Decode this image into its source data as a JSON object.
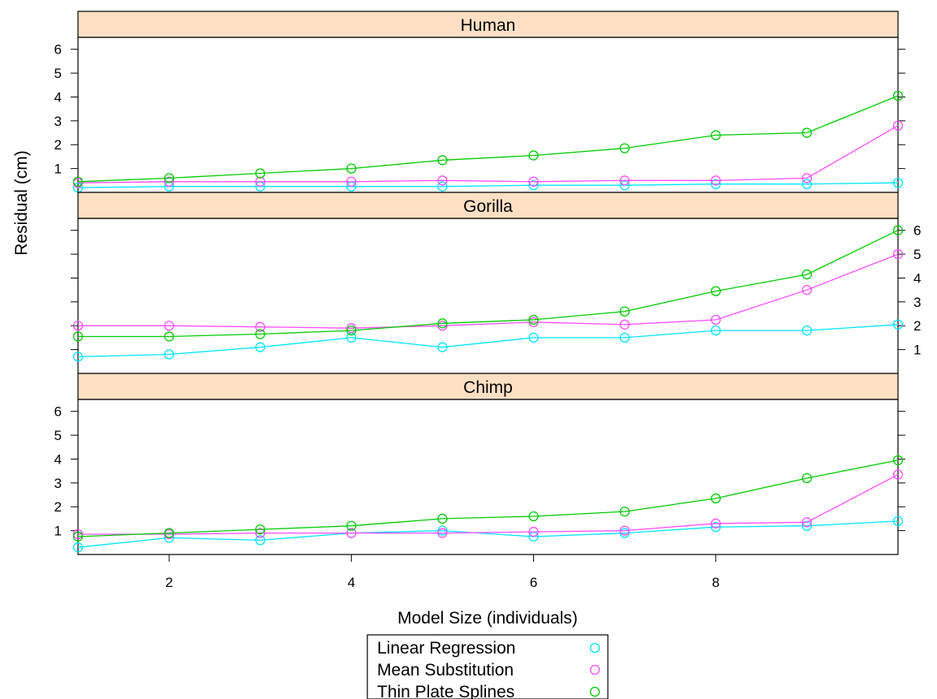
{
  "chart_data": {
    "type": "line",
    "xlabel": "Model Size (individuals)",
    "ylabel": "Residual (cm)",
    "x": [
      1,
      2,
      3,
      4,
      5,
      6,
      7,
      8,
      9,
      10
    ],
    "xlim": [
      1,
      10
    ],
    "ylim": [
      0,
      6.5
    ],
    "xticks": [
      "2",
      "4",
      "6",
      "8"
    ],
    "yticks": [
      "1",
      "2",
      "3",
      "4",
      "5",
      "6"
    ],
    "panels": [
      {
        "name": "Human",
        "series": [
          {
            "name": "Linear Regression",
            "color": "#00e5ff",
            "values": [
              0.2,
              0.25,
              0.25,
              0.25,
              0.25,
              0.3,
              0.3,
              0.35,
              0.35,
              0.4
            ]
          },
          {
            "name": "Mean Substitution",
            "color": "#ff4cff",
            "values": [
              0.4,
              0.45,
              0.45,
              0.45,
              0.5,
              0.45,
              0.5,
              0.5,
              0.6,
              2.8
            ]
          },
          {
            "name": "Thin Plate Splines",
            "color": "#00cc00",
            "values": [
              0.45,
              0.6,
              0.8,
              1.0,
              1.35,
              1.55,
              1.85,
              2.4,
              2.5,
              4.05
            ]
          }
        ]
      },
      {
        "name": "Gorilla",
        "series": [
          {
            "name": "Linear Regression",
            "color": "#00e5ff",
            "values": [
              0.7,
              0.8,
              1.1,
              1.5,
              1.1,
              1.5,
              1.5,
              1.8,
              1.8,
              2.05
            ]
          },
          {
            "name": "Mean Substitution",
            "color": "#ff4cff",
            "values": [
              2.0,
              2.0,
              1.95,
              1.9,
              2.0,
              2.15,
              2.05,
              2.25,
              3.5,
              5.0
            ]
          },
          {
            "name": "Thin Plate Splines",
            "color": "#00cc00",
            "values": [
              1.55,
              1.55,
              1.65,
              1.8,
              2.1,
              2.25,
              2.6,
              3.45,
              4.15,
              6.0
            ]
          }
        ]
      },
      {
        "name": "Chimp",
        "series": [
          {
            "name": "Linear Regression",
            "color": "#00e5ff",
            "values": [
              0.3,
              0.7,
              0.6,
              0.9,
              1.0,
              0.75,
              0.9,
              1.15,
              1.2,
              1.4
            ]
          },
          {
            "name": "Mean Substitution",
            "color": "#ff4cff",
            "values": [
              0.85,
              0.85,
              0.9,
              0.9,
              0.9,
              0.95,
              1.0,
              1.3,
              1.35,
              3.35
            ]
          },
          {
            "name": "Thin Plate Splines",
            "color": "#00cc00",
            "values": [
              0.75,
              0.9,
              1.05,
              1.2,
              1.5,
              1.6,
              1.8,
              2.35,
              3.2,
              3.95
            ]
          }
        ]
      }
    ],
    "legend": {
      "placement": "bottom",
      "entries": [
        "Linear Regression",
        "Mean Substitution",
        "Thin Plate Splines"
      ]
    },
    "colors": {
      "strip_background": "#ffe0c4",
      "linear_regression": "#00e5ff",
      "mean_substitution": "#ff4cff",
      "thin_plate_splines": "#00cc00"
    },
    "grid": false
  }
}
